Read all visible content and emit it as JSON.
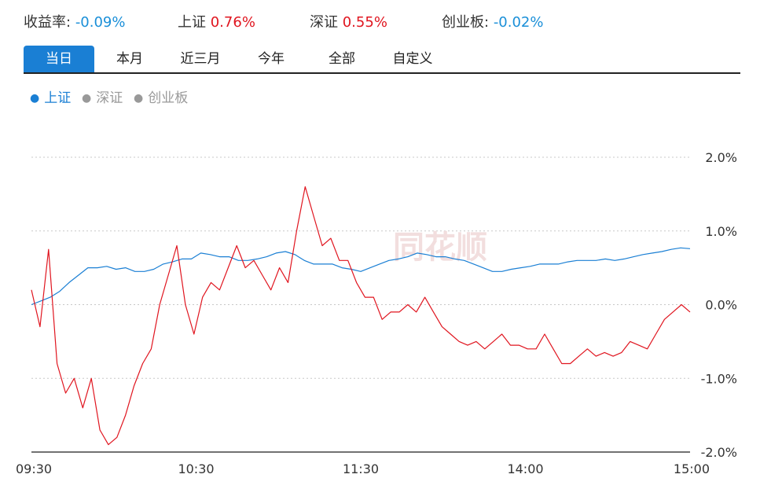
{
  "header": {
    "stats": [
      {
        "label": "收益率:",
        "value": "-0.09%",
        "tone": "neg"
      },
      {
        "label": "上证",
        "value": "0.76%",
        "tone": "pos"
      },
      {
        "label": "深证",
        "value": "0.55%",
        "tone": "pos"
      },
      {
        "label": "创业板:",
        "value": "-0.02%",
        "tone": "neg"
      }
    ]
  },
  "tabs": [
    "当日",
    "本月",
    "近三月",
    "今年",
    "全部",
    "自定义"
  ],
  "active_tab": "当日",
  "legend": [
    "上证",
    "深证",
    "创业板"
  ],
  "watermark": "同花顺",
  "colors": {
    "accent": "#1a7fd4",
    "positive": "#e0151f",
    "negative": "#1a8fd8"
  },
  "chart_data": {
    "type": "line",
    "x_ticks": [
      "09:30",
      "10:30",
      "11:30",
      "14:00",
      "15:00"
    ],
    "y_ticks": [
      "2.0%",
      "1.0%",
      "0.0%",
      "-1.0%",
      "-2.0%"
    ],
    "ylim": [
      -2.0,
      2.0
    ],
    "grid": true,
    "series": [
      {
        "name": "上证",
        "color": "#1a7fd4",
        "values": [
          0.0,
          0.05,
          0.1,
          0.18,
          0.3,
          0.4,
          0.5,
          0.5,
          0.52,
          0.48,
          0.5,
          0.45,
          0.45,
          0.48,
          0.55,
          0.58,
          0.62,
          0.62,
          0.7,
          0.68,
          0.65,
          0.65,
          0.6,
          0.6,
          0.62,
          0.65,
          0.7,
          0.72,
          0.68,
          0.6,
          0.55,
          0.55,
          0.55,
          0.5,
          0.48,
          0.45,
          0.5,
          0.55,
          0.6,
          0.62,
          0.65,
          0.7,
          0.68,
          0.65,
          0.65,
          0.62,
          0.6,
          0.55,
          0.5,
          0.45,
          0.45,
          0.48,
          0.5,
          0.52,
          0.55,
          0.55,
          0.55,
          0.58,
          0.6,
          0.6,
          0.6,
          0.62,
          0.6,
          0.62,
          0.65,
          0.68,
          0.7,
          0.72,
          0.75,
          0.77,
          0.76
        ]
      },
      {
        "name": "",
        "color": "#e0151f",
        "values": [
          0.2,
          -0.3,
          0.75,
          -0.8,
          -1.2,
          -1.0,
          -1.4,
          -1.0,
          -1.7,
          -1.9,
          -1.8,
          -1.5,
          -1.1,
          -0.8,
          -0.6,
          0.0,
          0.4,
          0.8,
          0.0,
          -0.4,
          0.1,
          0.3,
          0.2,
          0.5,
          0.8,
          0.5,
          0.6,
          0.4,
          0.2,
          0.5,
          0.3,
          1.0,
          1.6,
          1.2,
          0.8,
          0.9,
          0.6,
          0.6,
          0.3,
          0.1,
          0.1,
          -0.2,
          -0.1,
          -0.1,
          0.0,
          -0.1,
          0.1,
          -0.1,
          -0.3,
          -0.4,
          -0.5,
          -0.55,
          -0.5,
          -0.6,
          -0.5,
          -0.4,
          -0.55,
          -0.55,
          -0.6,
          -0.6,
          -0.4,
          -0.6,
          -0.8,
          -0.8,
          -0.7,
          -0.6,
          -0.7,
          -0.65,
          -0.7,
          -0.65,
          -0.5,
          -0.55,
          -0.6,
          -0.4,
          -0.2,
          -0.1,
          0.0,
          -0.1
        ]
      }
    ]
  }
}
